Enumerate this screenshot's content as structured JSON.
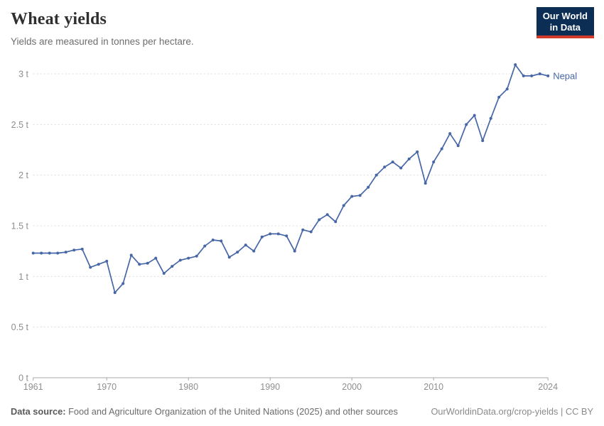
{
  "header": {
    "title": "Wheat yields",
    "subtitle": "Yields are measured in tonnes per hectare.",
    "logo": {
      "line1": "Our World",
      "line2": "in Data"
    }
  },
  "footer": {
    "source_label": "Data source:",
    "source_text": " Food and Agriculture Organization of the United Nations (2025) and other sources",
    "attribution": "OurWorldinData.org/crop-yields | CC BY"
  },
  "colors": {
    "series_blue": "#4666a6",
    "gridline": "#dcdcdc",
    "axis": "#a8a8a8",
    "tick_text": "#8e8e8e",
    "logo_navy": "#0d2e54",
    "logo_red": "#d23a2a"
  },
  "chart_data": {
    "type": "line",
    "title": "Wheat yields",
    "subtitle": "Yields are measured in tonnes per hectare.",
    "unit": "tonnes per hectare",
    "xlabel": "",
    "ylabel": "",
    "xlim": [
      1961,
      2024
    ],
    "ylim": [
      0,
      3
    ],
    "grid": "horizontal-dashed",
    "legend_position": "end-of-line-label",
    "x_ticks": [
      1961,
      1970,
      1980,
      1990,
      2000,
      2010,
      2024
    ],
    "y_ticks": [
      {
        "value": 0,
        "label": "0 t"
      },
      {
        "value": 0.5,
        "label": "0.5 t"
      },
      {
        "value": 1,
        "label": "1 t"
      },
      {
        "value": 1.5,
        "label": "1.5 t"
      },
      {
        "value": 2,
        "label": "2 t"
      },
      {
        "value": 2.5,
        "label": "2.5 t"
      },
      {
        "value": 3,
        "label": "3 t"
      }
    ],
    "x": [
      1961,
      1962,
      1963,
      1964,
      1965,
      1966,
      1967,
      1968,
      1969,
      1970,
      1971,
      1972,
      1973,
      1974,
      1975,
      1976,
      1977,
      1978,
      1979,
      1980,
      1981,
      1982,
      1983,
      1984,
      1985,
      1986,
      1987,
      1988,
      1989,
      1990,
      1991,
      1992,
      1993,
      1994,
      1995,
      1996,
      1997,
      1998,
      1999,
      2000,
      2001,
      2002,
      2003,
      2004,
      2005,
      2006,
      2007,
      2008,
      2009,
      2010,
      2011,
      2012,
      2013,
      2014,
      2015,
      2016,
      2017,
      2018,
      2019,
      2020,
      2021,
      2022,
      2023,
      2024
    ],
    "series": [
      {
        "name": "Nepal",
        "color": "#4666a6",
        "values": [
          1.23,
          1.23,
          1.23,
          1.23,
          1.24,
          1.26,
          1.27,
          1.09,
          1.12,
          1.15,
          0.84,
          0.93,
          1.21,
          1.12,
          1.13,
          1.18,
          1.03,
          1.1,
          1.16,
          1.18,
          1.2,
          1.3,
          1.36,
          1.35,
          1.19,
          1.24,
          1.31,
          1.25,
          1.39,
          1.42,
          1.42,
          1.4,
          1.25,
          1.46,
          1.44,
          1.56,
          1.61,
          1.54,
          1.7,
          1.79,
          1.8,
          1.88,
          2.0,
          2.08,
          2.13,
          2.07,
          2.16,
          2.23,
          1.92,
          2.13,
          2.26,
          2.41,
          2.29,
          2.5,
          2.59,
          2.34,
          2.56,
          2.77,
          2.85,
          3.09,
          2.98,
          2.98,
          3.0,
          2.98
        ]
      }
    ]
  }
}
